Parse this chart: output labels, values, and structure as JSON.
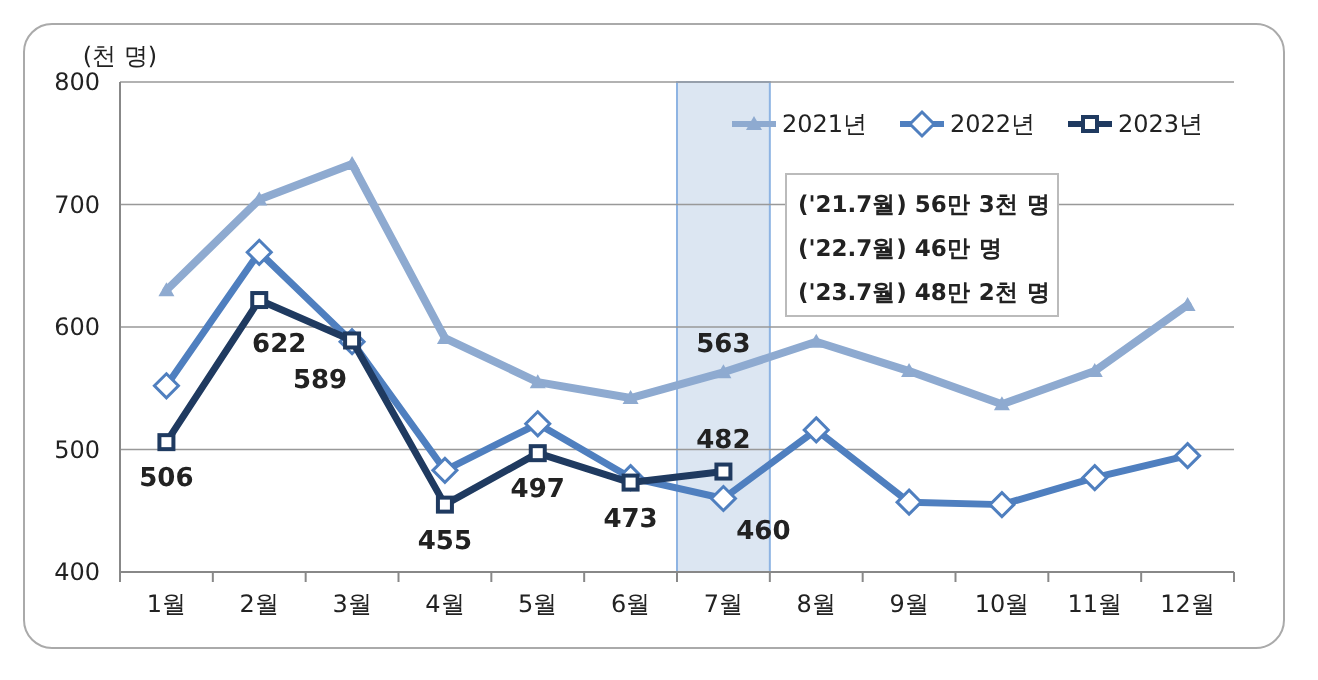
{
  "chart_data": {
    "type": "line",
    "ylabel": "(천 명)",
    "categories": [
      "1월",
      "2월",
      "3월",
      "4월",
      "5월",
      "6월",
      "7월",
      "8월",
      "9월",
      "10월",
      "11월",
      "12월"
    ],
    "ylim": [
      400,
      800
    ],
    "yticks": [
      400,
      500,
      600,
      700,
      800
    ],
    "grid": "y",
    "legend": "top right",
    "series": [
      {
        "name": "2021년",
        "color": "#8eaad0",
        "marker": "triangle",
        "values": [
          630,
          704,
          733,
          591,
          555,
          542,
          563,
          588,
          564,
          537,
          564,
          618
        ],
        "value_labels": [
          null,
          null,
          null,
          null,
          null,
          null,
          "563",
          null,
          null,
          null,
          null,
          null
        ]
      },
      {
        "name": "2022년",
        "color": "#4f7fbf",
        "marker": "diamond",
        "values": [
          552,
          661,
          588,
          483,
          521,
          477,
          460,
          516,
          457,
          455,
          477,
          495
        ],
        "value_labels": [
          null,
          null,
          null,
          null,
          null,
          null,
          "460",
          null,
          null,
          null,
          null,
          null
        ]
      },
      {
        "name": "2023년",
        "color": "#1f3a60",
        "marker": "square",
        "values": [
          506,
          622,
          589,
          455,
          497,
          473,
          482,
          null,
          null,
          null,
          null,
          null
        ],
        "data_labels": true
      }
    ],
    "bands": [
      {
        "axis": "x",
        "from": "7월",
        "to": "7월",
        "color": "#dce6f2"
      }
    ],
    "annotations": [
      "('21.7월) 56만 3천 명",
      "('22.7월) 46만 명",
      "('23.7월) 48만 2천 명"
    ]
  }
}
